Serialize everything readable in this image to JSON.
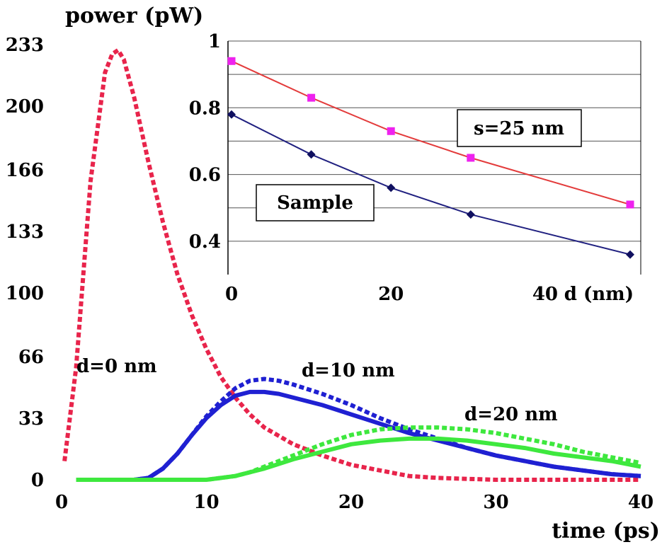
{
  "chart_data": [
    {
      "type": "line",
      "ylabel": "power (pW)",
      "xlabel": "time (ps)",
      "xlim": [
        0,
        40
      ],
      "ylim": [
        0,
        233
      ],
      "x_ticks": [
        "0",
        "10",
        "20",
        "30",
        "40"
      ],
      "y_ticks": [
        "0",
        "33",
        "66",
        "100",
        "133",
        "166",
        "200",
        "233"
      ],
      "x_tick_values": [
        0,
        10,
        20,
        30,
        40
      ],
      "y_tick_values": [
        0,
        33,
        66,
        100,
        133,
        166,
        200,
        233
      ],
      "annotations": [
        "d=0 nm",
        "d=10 nm",
        "d=20 nm"
      ],
      "series": [
        {
          "color": "#e8244b",
          "style": "dashed",
          "x": [
            0.2,
            1,
            2,
            3,
            3.5,
            3.9,
            4.3,
            5,
            6,
            7,
            8,
            9,
            10,
            11,
            12,
            13,
            14,
            16,
            18,
            20,
            22,
            24,
            26,
            28,
            30,
            34,
            40
          ],
          "y": [
            10,
            60,
            160,
            218,
            228,
            230,
            225,
            205,
            170,
            138,
            110,
            88,
            70,
            55,
            44,
            35,
            28,
            19,
            13,
            8,
            5,
            2,
            1,
            0.5,
            0,
            0,
            0
          ]
        },
        {
          "color": "#1f20d2",
          "style": "dashed",
          "x": [
            1,
            5,
            6,
            7,
            8,
            9,
            10,
            11,
            12,
            13,
            14,
            15,
            16,
            18,
            20,
            22,
            24,
            26,
            28,
            30,
            32,
            34,
            36,
            38,
            40
          ],
          "y": [
            0,
            0,
            1,
            6,
            14,
            24,
            34,
            42,
            49,
            53,
            54,
            53,
            51,
            46,
            40,
            33,
            27,
            22,
            17,
            13,
            10,
            7,
            5,
            3,
            2
          ]
        },
        {
          "color": "#1f20d2",
          "style": "solid",
          "x": [
            1,
            5,
            6,
            7,
            8,
            9,
            10,
            11,
            12,
            13,
            14,
            15,
            16,
            18,
            20,
            22,
            24,
            26,
            28,
            30,
            32,
            34,
            36,
            38,
            40
          ],
          "y": [
            0,
            0,
            1,
            6,
            14,
            24,
            33,
            40,
            45,
            47,
            47,
            46,
            44,
            40,
            35,
            30,
            25,
            21,
            17,
            13,
            10,
            7,
            5,
            3,
            2
          ]
        },
        {
          "color": "#3ee83e",
          "style": "dashed",
          "x": [
            1,
            10,
            11,
            12,
            13,
            14,
            16,
            18,
            20,
            22,
            24,
            26,
            28,
            30,
            32,
            34,
            36,
            38,
            40
          ],
          "y": [
            0,
            0,
            1,
            2,
            4,
            7,
            13,
            19,
            24,
            27,
            28,
            28,
            27,
            25,
            22,
            19,
            15,
            12,
            9
          ]
        },
        {
          "color": "#3ee83e",
          "style": "solid",
          "x": [
            1,
            10,
            11,
            12,
            13,
            14,
            16,
            18,
            20,
            22,
            24,
            26,
            28,
            30,
            32,
            34,
            36,
            38,
            40
          ],
          "y": [
            0,
            0,
            1,
            2,
            4,
            6,
            11,
            15,
            19,
            21,
            22,
            22,
            21,
            19,
            17,
            14,
            12,
            10,
            7
          ]
        }
      ]
    },
    {
      "type": "line",
      "xlabel": "d (nm)",
      "xlim": [
        0,
        50
      ],
      "ylim": [
        0.3,
        1.0
      ],
      "x_ticks": [
        "0",
        "20",
        "40"
      ],
      "x_tick_values": [
        0,
        20,
        40
      ],
      "y_ticks": [
        "0.4",
        "0.6",
        "0.8",
        "1"
      ],
      "y_tick_values": [
        0.4,
        0.6,
        0.8,
        1.0
      ],
      "gridlines": [
        0.4,
        0.5,
        0.6,
        0.7,
        0.8,
        0.9,
        1.0
      ],
      "legend_boxes": [
        "s=25 nm",
        "Sample"
      ],
      "series": [
        {
          "color": "#e33b3b",
          "marker_color": "#ee22ee",
          "marker": "square",
          "x": [
            0,
            10,
            20,
            30,
            50
          ],
          "y": [
            0.94,
            0.83,
            0.73,
            0.65,
            0.51
          ]
        },
        {
          "color": "#202080",
          "marker_color": "#101060",
          "marker": "diamond",
          "x": [
            0,
            10,
            20,
            30,
            50
          ],
          "y": [
            0.78,
            0.66,
            0.56,
            0.48,
            0.36
          ]
        }
      ]
    }
  ]
}
